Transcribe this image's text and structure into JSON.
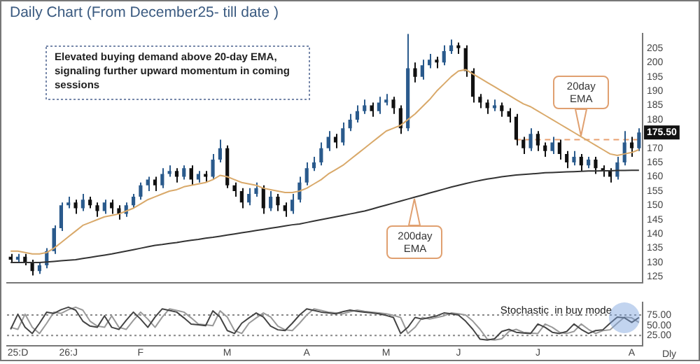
{
  "chart_data": [
    {
      "type": "candlestick",
      "title": "Daily Chart (From December25- till date )",
      "categories": [
        null,
        null,
        null,
        null,
        null,
        null,
        null,
        null,
        null,
        null,
        null,
        null,
        null,
        null,
        null,
        null,
        null,
        null,
        null,
        null,
        null,
        null,
        null,
        null,
        null,
        null,
        null,
        null,
        null,
        null,
        null,
        null,
        null,
        null,
        null,
        null,
        null,
        null,
        null,
        null,
        null,
        null,
        null,
        null,
        null,
        null,
        null,
        null,
        null,
        null,
        null,
        null,
        null,
        null,
        null,
        null,
        null,
        null,
        null,
        null,
        null,
        null,
        null,
        null,
        null,
        null,
        null,
        null,
        null,
        null,
        null,
        null,
        null,
        null,
        null,
        null,
        null,
        null,
        null,
        null,
        null,
        null,
        null,
        null,
        null,
        null,
        null,
        null
      ],
      "colors": [
        "#111111",
        "#2a5a8c",
        "#111111",
        "#111111",
        "#2a5a8c",
        "#2a5a8c",
        "#2a5a8c",
        "#2a5a8c",
        "#2a5a8c",
        "#111111",
        "#2a5a8c",
        "#111111",
        "#111111",
        "#2a5a8c",
        "#111111",
        "#111111",
        "#2a5a8c",
        "#2a5a8c",
        "#2a5a8c",
        "#2a5a8c",
        "#111111",
        "#2a5a8c",
        "#2a5a8c",
        "#111111",
        "#2a5a8c",
        "#111111",
        "#2a5a8c",
        "#111111",
        "#2a5a8c",
        "#2a5a8c",
        "#111111",
        "#111111",
        "#111111",
        "#2a5a8c",
        "#2a5a8c",
        "#111111",
        "#2a5a8c",
        "#111111",
        "#111111",
        "#2a5a8c",
        "#2a5a8c",
        "#2a5a8c",
        "#2a5a8c",
        "#2a5a8c",
        "#2a5a8c",
        "#111111",
        "#2a5a8c",
        "#2a5a8c",
        "#2a5a8c",
        "#2a5a8c",
        "#111111",
        "#2a5a8c",
        "#2a5a8c",
        "#111111",
        "#111111",
        "#2a5a8c",
        "#111111",
        "#2a5a8c",
        "#2a5a8c",
        "#111111",
        "#2a5a8c",
        "#2a5a8c",
        "#111111",
        "#111111",
        "#111111",
        "#111111",
        "#111111",
        "#2a5a8c",
        "#111111",
        "#111111",
        "#111111",
        "#111111",
        "#2a5a8c",
        "#111111",
        "#111111",
        "#2a5a8c",
        "#111111",
        "#111111",
        "#2a5a8c",
        "#111111",
        "#2a5a8c",
        "#111111",
        "#111111",
        "#111111",
        "#2a5a8c",
        "#2a5a8c",
        "#111111",
        "#2a5a8c"
      ],
      "ohlc": [
        [
          132,
          133,
          130,
          131
        ],
        [
          131,
          133,
          130,
          132
        ],
        [
          132,
          133,
          129,
          130
        ],
        [
          130,
          131,
          125.5,
          127
        ],
        [
          127,
          130,
          126,
          129
        ],
        [
          129,
          135,
          128,
          134
        ],
        [
          134,
          143,
          133,
          142
        ],
        [
          142,
          151,
          141,
          150
        ],
        [
          150,
          153,
          149,
          151
        ],
        [
          151,
          152,
          147,
          149
        ],
        [
          149,
          154,
          148,
          152
        ],
        [
          152,
          153,
          149,
          150
        ],
        [
          150,
          151,
          146,
          148
        ],
        [
          148,
          152,
          147,
          151
        ],
        [
          151,
          152,
          147,
          149
        ],
        [
          149,
          150,
          145,
          147
        ],
        [
          147,
          151,
          146,
          150
        ],
        [
          150,
          154,
          149,
          153
        ],
        [
          153,
          158,
          152,
          157
        ],
        [
          157,
          160,
          155,
          159
        ],
        [
          159,
          160,
          155,
          157
        ],
        [
          157,
          163,
          156,
          161
        ],
        [
          161,
          164,
          160,
          162
        ],
        [
          162,
          163,
          158,
          160
        ],
        [
          160,
          164,
          159,
          163
        ],
        [
          163,
          164,
          157,
          159
        ],
        [
          159,
          162,
          158,
          161
        ],
        [
          161,
          162,
          158,
          160
        ],
        [
          160,
          168,
          159,
          166
        ],
        [
          166,
          173,
          165,
          170
        ],
        [
          170,
          171,
          156,
          157
        ],
        [
          157,
          158,
          153,
          155
        ],
        [
          155,
          156,
          149,
          151
        ],
        [
          151,
          156,
          150,
          154
        ],
        [
          154,
          158,
          153,
          156
        ],
        [
          156,
          157,
          147,
          149
        ],
        [
          149,
          155,
          148,
          153
        ],
        [
          153,
          154,
          148,
          150
        ],
        [
          150,
          151,
          146,
          148
        ],
        [
          148,
          154,
          147,
          152
        ],
        [
          152,
          160,
          151,
          158
        ],
        [
          158,
          165,
          157,
          163
        ],
        [
          163,
          167,
          162,
          165
        ],
        [
          165,
          172,
          164,
          170
        ],
        [
          170,
          176,
          169,
          174
        ],
        [
          174,
          175,
          170,
          172
        ],
        [
          172,
          179,
          171,
          177
        ],
        [
          177,
          182,
          176,
          180
        ],
        [
          180,
          185,
          179,
          183
        ],
        [
          183,
          187,
          182,
          185
        ],
        [
          185,
          186,
          181,
          183
        ],
        [
          183,
          188,
          182,
          186
        ],
        [
          186,
          189,
          185,
          187
        ],
        [
          187,
          188,
          182,
          184
        ],
        [
          184,
          185,
          175,
          177
        ],
        [
          177,
          210,
          176,
          198
        ],
        [
          198,
          200,
          193,
          195
        ],
        [
          195,
          201,
          194,
          199
        ],
        [
          199,
          203,
          198,
          201
        ],
        [
          201,
          202,
          198,
          200
        ],
        [
          200,
          206,
          199,
          204
        ],
        [
          204,
          208,
          203,
          206
        ],
        [
          206,
          207,
          203,
          205
        ],
        [
          205,
          206,
          195,
          197
        ],
        [
          197,
          198,
          186,
          188
        ],
        [
          188,
          189,
          184,
          186
        ],
        [
          186,
          187,
          182,
          184
        ],
        [
          184,
          187,
          183,
          185
        ],
        [
          185,
          186,
          181,
          183
        ],
        [
          183,
          184,
          179,
          181
        ],
        [
          181,
          182,
          171,
          173
        ],
        [
          173,
          174,
          168,
          170
        ],
        [
          170,
          177,
          169,
          175
        ],
        [
          175,
          176,
          169,
          171
        ],
        [
          171,
          172,
          167,
          169
        ],
        [
          169,
          174,
          168,
          172
        ],
        [
          172,
          173,
          166,
          168
        ],
        [
          168,
          169,
          163,
          165
        ],
        [
          165,
          169,
          164,
          167
        ],
        [
          167,
          168,
          162,
          164
        ],
        [
          164,
          167,
          163,
          166
        ],
        [
          166,
          167,
          161,
          163
        ],
        [
          163,
          164,
          160,
          162
        ],
        [
          162,
          163,
          158,
          160
        ],
        [
          160,
          167,
          159,
          165
        ],
        [
          165,
          176,
          164,
          172
        ],
        [
          172,
          174,
          167,
          170
        ],
        [
          170,
          177,
          169,
          175.5
        ]
      ],
      "series": [
        {
          "type": "line",
          "name": "20day EMA",
          "color": "#d9a96a",
          "values": [
            134,
            134,
            133.5,
            133,
            133,
            133.5,
            135,
            137,
            139,
            141,
            143,
            144,
            145,
            146,
            146.5,
            147,
            148,
            149,
            150.5,
            152,
            153,
            154,
            155,
            155.5,
            156.5,
            157,
            157.5,
            158,
            159,
            160.5,
            160,
            159,
            158,
            157.5,
            157,
            156,
            155.5,
            155,
            154.5,
            154.5,
            155,
            156,
            157.5,
            159,
            161,
            162.5,
            164,
            166,
            168,
            170,
            172,
            174,
            176,
            177,
            178,
            180,
            182,
            184.5,
            187,
            190,
            192.5,
            195,
            197,
            197.5,
            196,
            194.5,
            193,
            191.5,
            190,
            188.5,
            187,
            185.5,
            184.5,
            183,
            181.5,
            180,
            178.5,
            177,
            175.5,
            174,
            172.5,
            171,
            169.5,
            168,
            167.5,
            168,
            168.5,
            169.5
          ]
        },
        {
          "type": "line",
          "name": "200day EMA",
          "color": "#333333",
          "values": [
            130,
            130,
            130,
            130,
            130,
            130.2,
            130.4,
            130.6,
            130.8,
            131,
            131.4,
            131.8,
            132.2,
            132.6,
            133,
            133.5,
            134,
            134.5,
            135,
            135.5,
            136,
            136.3,
            136.7,
            137,
            137.4,
            137.8,
            138.1,
            138.5,
            138.8,
            139.2,
            139.6,
            140,
            140.4,
            140.8,
            141.2,
            141.6,
            142,
            142.4,
            142.8,
            143.2,
            143.5,
            144,
            144.5,
            145,
            145.5,
            146,
            146.5,
            147,
            147.5,
            148,
            148.7,
            149.4,
            150.1,
            150.8,
            151.5,
            152.2,
            152.9,
            153.6,
            154.3,
            155,
            155.7,
            156.4,
            157,
            157.6,
            158.2,
            158.7,
            159.2,
            159.6,
            160,
            160.3,
            160.6,
            160.8,
            161,
            161.2,
            161.4,
            161.5,
            161.6,
            161.7,
            161.8,
            161.9,
            162,
            162,
            162.1,
            162.1,
            162.2,
            162.2,
            162.3,
            162.3
          ]
        }
      ],
      "ylim": [
        123,
        210
      ],
      "yticks": [
        125,
        130,
        135,
        140,
        145,
        150,
        155,
        160,
        165,
        170,
        180,
        185,
        190,
        195,
        200,
        205
      ],
      "tick_labels": "y",
      "ref_lines": [
        {
          "axis": "y",
          "value": 173,
          "color": "#e8a070",
          "line_style": "dashed"
        }
      ],
      "annotations": [
        "Elevated buying demand above 20-day EMA,  signaling further upward momentum in coming sessions",
        {
          "text": "175.50",
          "y": 175.5
        }
      ]
    },
    {
      "type": "line",
      "categories": [
        null,
        "25:D",
        null,
        null,
        null,
        null,
        null,
        null,
        "26:J",
        null,
        null,
        null,
        null,
        null,
        null,
        null,
        null,
        null,
        "F",
        null,
        null,
        null,
        null,
        null,
        null,
        null,
        null,
        null,
        null,
        null,
        "M",
        null,
        null,
        null,
        null,
        null,
        null,
        null,
        null,
        null,
        null,
        "A",
        null,
        null,
        null,
        null,
        null,
        null,
        null,
        null,
        null,
        null,
        "M",
        null,
        null,
        null,
        null,
        null,
        null,
        null,
        null,
        null,
        "J",
        null,
        null,
        null,
        null,
        null,
        null,
        null,
        null,
        null,
        null,
        "J",
        null,
        null,
        null,
        null,
        null,
        null,
        null,
        null,
        null,
        null,
        null,
        null,
        "A",
        null
      ],
      "series": [
        {
          "color": "#444444",
          "values": [
            40,
            77,
            45,
            30,
            55,
            82,
            79,
            88,
            94,
            87,
            60,
            48,
            45,
            73,
            45,
            40,
            62,
            82,
            65,
            45,
            70,
            90,
            86,
            82,
            68,
            53,
            51,
            49,
            85,
            70,
            37,
            30,
            55,
            68,
            80,
            70,
            48,
            39,
            37,
            55,
            75,
            90,
            86,
            82,
            80,
            78,
            83,
            87,
            84,
            82,
            80,
            78,
            74,
            69,
            30,
            45,
            69,
            65,
            69,
            73,
            80,
            78,
            75,
            60,
            40,
            16,
            14,
            17,
            35,
            40,
            33,
            31,
            30,
            53,
            45,
            33,
            30,
            35,
            53,
            40,
            30,
            37,
            39,
            55,
            70,
            68,
            57,
            69
          ]
        },
        {
          "color": "#999999",
          "values": [
            45,
            40,
            77,
            45,
            30,
            55,
            82,
            79,
            88,
            94,
            87,
            60,
            48,
            45,
            73,
            45,
            40,
            62,
            82,
            65,
            45,
            70,
            90,
            86,
            82,
            68,
            53,
            51,
            49,
            85,
            70,
            37,
            30,
            55,
            68,
            80,
            70,
            48,
            39,
            37,
            55,
            75,
            90,
            86,
            82,
            80,
            78,
            83,
            87,
            84,
            82,
            80,
            78,
            74,
            69,
            30,
            45,
            69,
            65,
            69,
            73,
            80,
            78,
            75,
            60,
            40,
            16,
            14,
            17,
            35,
            40,
            33,
            31,
            30,
            53,
            45,
            33,
            30,
            35,
            53,
            40,
            30,
            37,
            39,
            55,
            70,
            68,
            57
          ]
        }
      ],
      "ylim": [
        0,
        105
      ],
      "yticks": [
        {
          "value": 25,
          "label": "25.00"
        },
        {
          "value": 50,
          "label": "50.00"
        },
        {
          "value": 75,
          "label": "75.00"
        }
      ],
      "ref_lines": [
        {
          "axis": "y",
          "value": 75,
          "color": "#888888",
          "line_style": "dotted"
        },
        {
          "axis": "y",
          "value": 25,
          "color": "#888888",
          "line_style": "dotted"
        }
      ],
      "annotations": [
        "Stochastic  in buy mode",
        "Dly"
      ]
    }
  ]
}
